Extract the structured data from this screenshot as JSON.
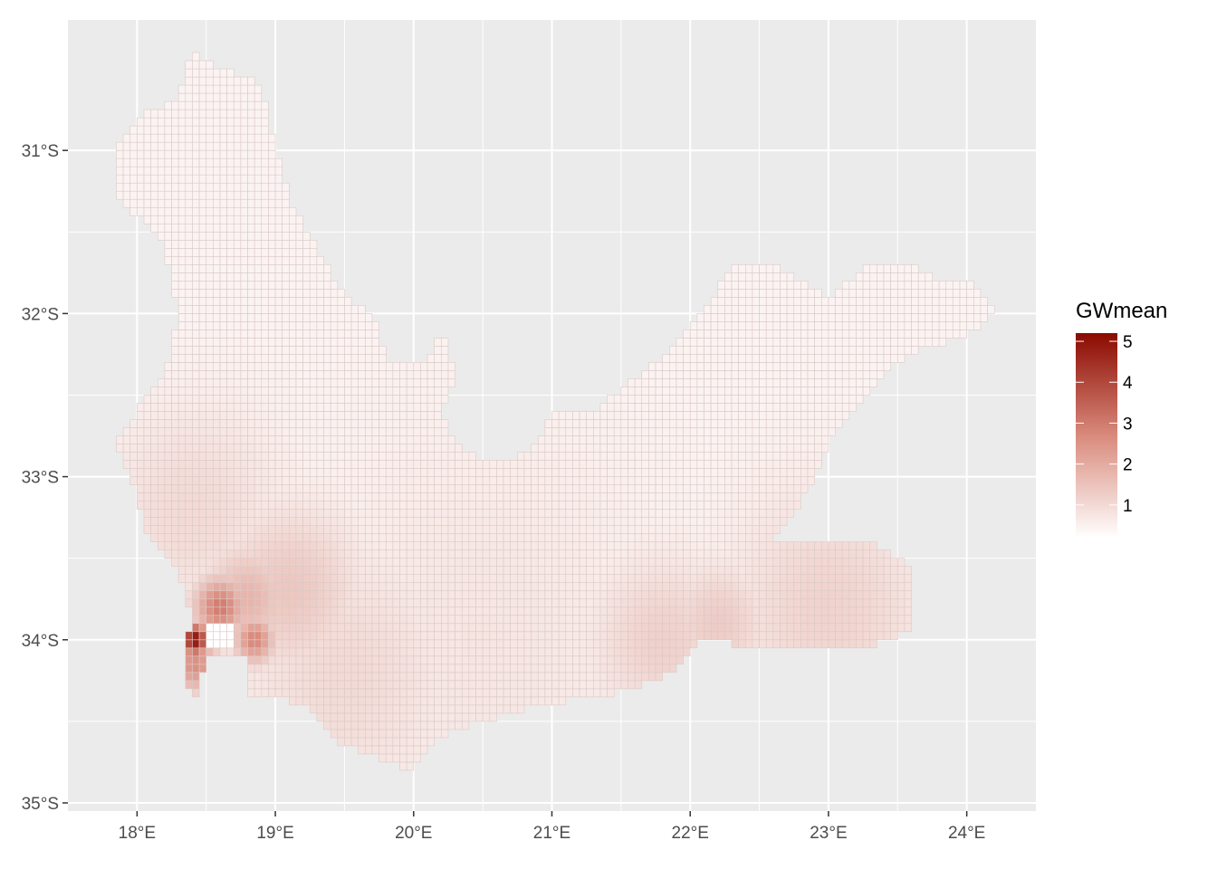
{
  "chart_data": {
    "type": "heatmap",
    "title": "",
    "xlabel": "",
    "ylabel": "",
    "x_ticks": [
      {
        "value": 18,
        "label": "18°E"
      },
      {
        "value": 19,
        "label": "19°E"
      },
      {
        "value": 20,
        "label": "20°E"
      },
      {
        "value": 21,
        "label": "21°E"
      },
      {
        "value": 22,
        "label": "22°E"
      },
      {
        "value": 23,
        "label": "23°E"
      },
      {
        "value": 24,
        "label": "24°E"
      }
    ],
    "y_ticks": [
      {
        "value": -31,
        "label": "31°S"
      },
      {
        "value": -32,
        "label": "32°S"
      },
      {
        "value": -33,
        "label": "33°S"
      },
      {
        "value": -34,
        "label": "34°S"
      },
      {
        "value": -35,
        "label": "35°S"
      }
    ],
    "xlim": [
      17.5,
      24.5
    ],
    "ylim": [
      -35.05,
      -30.2
    ],
    "grid": true,
    "cell_size_deg": 0.05,
    "legend": {
      "title": "GWmean",
      "position": "right",
      "ticks": [
        1,
        2,
        3,
        4,
        5
      ],
      "range": [
        0.2,
        5.2
      ],
      "color_low": "#ffffff",
      "color_high": "#8b0a00"
    },
    "region_outline": [
      [
        18.4,
        -30.4
      ],
      [
        18.6,
        -30.5
      ],
      [
        18.9,
        -30.6
      ],
      [
        19.0,
        -31.0
      ],
      [
        19.1,
        -31.3
      ],
      [
        19.3,
        -31.6
      ],
      [
        19.5,
        -31.9
      ],
      [
        19.7,
        -32.0
      ],
      [
        19.8,
        -32.3
      ],
      [
        20.1,
        -32.3
      ],
      [
        20.2,
        -32.1
      ],
      [
        20.3,
        -32.4
      ],
      [
        20.2,
        -32.6
      ],
      [
        20.3,
        -32.8
      ],
      [
        20.5,
        -32.9
      ],
      [
        20.7,
        -32.9
      ],
      [
        20.9,
        -32.8
      ],
      [
        21.0,
        -32.6
      ],
      [
        21.3,
        -32.6
      ],
      [
        21.6,
        -32.4
      ],
      [
        21.9,
        -32.2
      ],
      [
        22.1,
        -32.0
      ],
      [
        22.3,
        -31.7
      ],
      [
        22.6,
        -31.7
      ],
      [
        22.8,
        -31.8
      ],
      [
        23.0,
        -31.9
      ],
      [
        23.3,
        -31.7
      ],
      [
        23.6,
        -31.7
      ],
      [
        23.8,
        -31.8
      ],
      [
        24.0,
        -31.8
      ],
      [
        24.2,
        -31.95
      ],
      [
        24.1,
        -32.1
      ],
      [
        23.8,
        -32.2
      ],
      [
        23.7,
        -32.2
      ],
      [
        23.5,
        -32.3
      ],
      [
        23.3,
        -32.5
      ],
      [
        23.0,
        -32.8
      ],
      [
        22.9,
        -33.0
      ],
      [
        22.7,
        -33.3
      ],
      [
        22.6,
        -33.4
      ],
      [
        23.0,
        -33.4
      ],
      [
        23.3,
        -33.4
      ],
      [
        23.6,
        -33.55
      ],
      [
        23.6,
        -33.95
      ],
      [
        23.3,
        -34.05
      ],
      [
        22.9,
        -34.05
      ],
      [
        22.5,
        -34.05
      ],
      [
        22.1,
        -34.0
      ],
      [
        21.9,
        -34.2
      ],
      [
        21.6,
        -34.3
      ],
      [
        21.3,
        -34.35
      ],
      [
        20.9,
        -34.4
      ],
      [
        20.7,
        -34.45
      ],
      [
        20.5,
        -34.5
      ],
      [
        20.2,
        -34.6
      ],
      [
        20.0,
        -34.8
      ],
      [
        19.8,
        -34.75
      ],
      [
        19.4,
        -34.6
      ],
      [
        19.3,
        -34.45
      ],
      [
        19.0,
        -34.35
      ],
      [
        18.8,
        -34.35
      ],
      [
        18.8,
        -34.1
      ],
      [
        18.5,
        -34.1
      ],
      [
        18.45,
        -34.35
      ],
      [
        18.35,
        -34.3
      ],
      [
        18.35,
        -34.0
      ],
      [
        18.4,
        -33.9
      ],
      [
        18.3,
        -33.6
      ],
      [
        18.1,
        -33.4
      ],
      [
        18.0,
        -33.15
      ],
      [
        17.95,
        -33.0
      ],
      [
        17.85,
        -32.8
      ],
      [
        18.0,
        -32.6
      ],
      [
        18.2,
        -32.4
      ],
      [
        18.3,
        -32.0
      ],
      [
        18.2,
        -31.6
      ],
      [
        18.0,
        -31.4
      ],
      [
        17.85,
        -31.3
      ],
      [
        17.85,
        -31.0
      ],
      [
        18.0,
        -30.8
      ],
      [
        18.3,
        -30.7
      ],
      [
        18.35,
        -30.5
      ]
    ],
    "hotspots": [
      {
        "lon": 18.42,
        "lat": -34.0,
        "value": 5.1,
        "radius_deg": 0.07
      },
      {
        "lon": 18.42,
        "lat": -34.15,
        "value": 2.6,
        "radius_deg": 0.12
      },
      {
        "lon": 18.6,
        "lat": -33.8,
        "value": 3.0,
        "radius_deg": 0.13
      },
      {
        "lon": 18.85,
        "lat": -34.0,
        "value": 2.8,
        "radius_deg": 0.1
      },
      {
        "lon": 18.8,
        "lat": -33.75,
        "value": 1.8,
        "radius_deg": 0.22
      },
      {
        "lon": 19.1,
        "lat": -33.7,
        "value": 1.4,
        "radius_deg": 0.35
      },
      {
        "lon": 18.4,
        "lat": -33.2,
        "value": 1.0,
        "radius_deg": 0.45
      },
      {
        "lon": 19.5,
        "lat": -34.2,
        "value": 1.0,
        "radius_deg": 0.55
      },
      {
        "lon": 21.8,
        "lat": -34.0,
        "value": 1.2,
        "radius_deg": 0.35
      },
      {
        "lon": 22.2,
        "lat": -33.9,
        "value": 1.3,
        "radius_deg": 0.25
      },
      {
        "lon": 23.0,
        "lat": -33.8,
        "value": 1.15,
        "radius_deg": 0.5
      },
      {
        "lon": 20.5,
        "lat": -34.0,
        "value": 0.75,
        "radius_deg": 0.9
      }
    ],
    "baseline_value": 0.45,
    "blank_cells": [
      {
        "lon_min": 18.5,
        "lon_max": 18.7,
        "lat_min": -34.05,
        "lat_max": -33.9
      }
    ]
  }
}
